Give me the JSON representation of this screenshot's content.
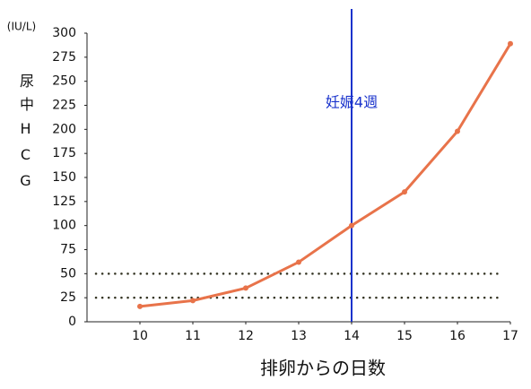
{
  "chart_data": {
    "type": "line",
    "y_label": "尿中HCG",
    "y_unit": "(IU/L)",
    "x_label": "排卵からの日数",
    "x": [
      10,
      11,
      12,
      13,
      14,
      15,
      16,
      17
    ],
    "series": [
      {
        "color": "#e8734a",
        "values": [
          16,
          22,
          35,
          62,
          100,
          135,
          198,
          289
        ]
      }
    ],
    "xlim": [
      9,
      17
    ],
    "xticks": [
      10,
      11,
      12,
      13,
      14,
      15,
      16,
      17
    ],
    "ylim": [
      0,
      300
    ],
    "yticks": [
      0,
      25,
      50,
      75,
      100,
      125,
      150,
      175,
      200,
      225,
      250,
      275,
      300
    ],
    "hlines": [
      50,
      25
    ],
    "hline_color": "#333322",
    "vline": {
      "x": 14,
      "label": "妊娠4週",
      "color": "#1a33cc"
    },
    "grid": false
  }
}
